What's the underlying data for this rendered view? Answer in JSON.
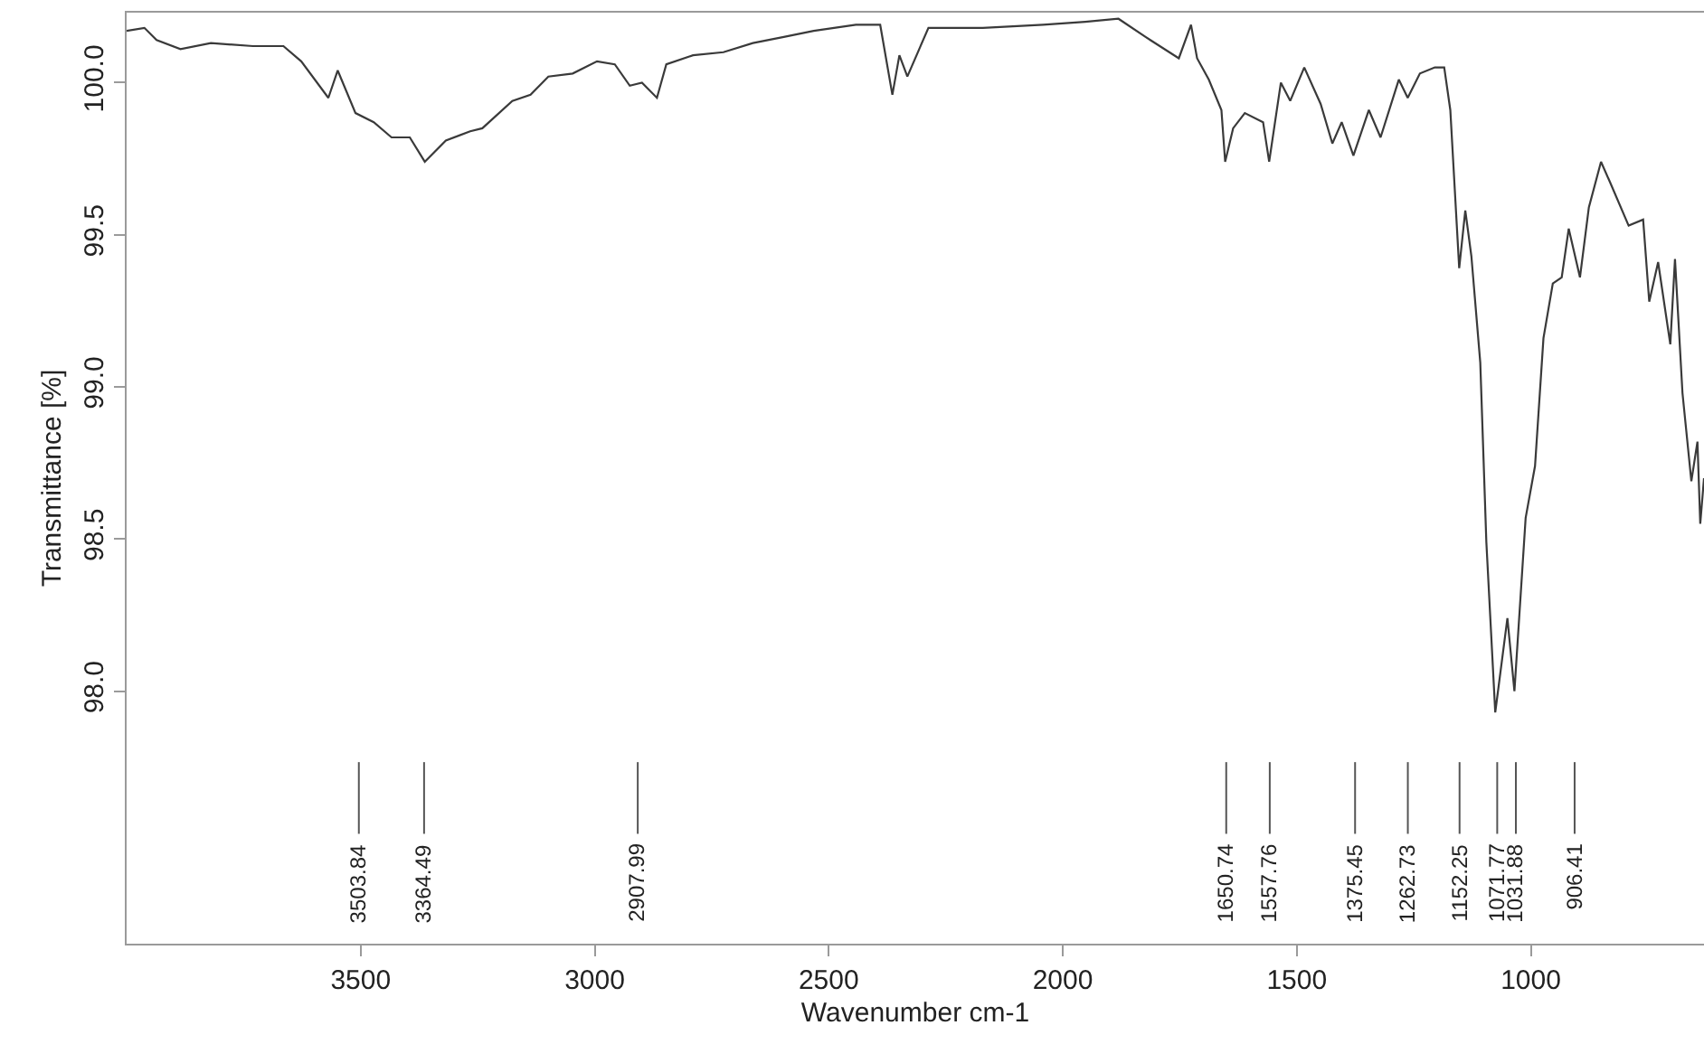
{
  "chart_data": {
    "type": "line",
    "xlabel": "Wavenumber cm-1",
    "ylabel": "Transmittance [%]",
    "xlim": [
      4000,
      630
    ],
    "xticks": [
      3500,
      3000,
      2500,
      2000,
      1500,
      1000
    ],
    "ylim": [
      97.17,
      100.23
    ],
    "yticks": [
      {
        "value": 98.0,
        "label": "98.0"
      },
      {
        "value": 98.5,
        "label": "98.5"
      },
      {
        "value": 99.0,
        "label": "99.0"
      },
      {
        "value": 99.5,
        "label": "99.5"
      },
      {
        "value": 100.0,
        "label": "100.0"
      }
    ],
    "legend": false,
    "marker": "none",
    "line_style": "solid",
    "x": [
      4000,
      3962,
      3936,
      3885,
      3820,
      3730,
      3665,
      3627,
      3569,
      3549,
      3511,
      3472,
      3434,
      3395,
      3363,
      3318,
      3266,
      3240,
      3176,
      3137,
      3099,
      3047,
      2995,
      2957,
      2925,
      2899,
      2867,
      2847,
      2790,
      2725,
      2662,
      2596,
      2532,
      2442,
      2390,
      2364,
      2349,
      2332,
      2287,
      2171,
      2042,
      1952,
      1881,
      1823,
      1752,
      1726,
      1713,
      1688,
      1661,
      1653,
      1636,
      1611,
      1572,
      1559,
      1534,
      1514,
      1484,
      1449,
      1424,
      1404,
      1379,
      1346,
      1321,
      1282,
      1263,
      1237,
      1205,
      1185,
      1172,
      1153,
      1140,
      1127,
      1108,
      1095,
      1076,
      1050,
      1035,
      1011,
      991,
      973,
      953,
      934,
      919,
      895,
      876,
      850,
      830,
      791,
      760,
      747,
      728,
      702,
      692,
      676,
      657,
      644,
      638,
      630
    ],
    "series": [
      {
        "color": "#3a3a3a",
        "values": [
          100.17,
          100.18,
          100.14,
          100.11,
          100.13,
          100.12,
          100.12,
          100.07,
          99.95,
          100.04,
          99.9,
          99.87,
          99.82,
          99.82,
          99.74,
          99.81,
          99.84,
          99.85,
          99.94,
          99.96,
          100.02,
          100.03,
          100.07,
          100.06,
          99.99,
          100.0,
          99.95,
          100.06,
          100.09,
          100.1,
          100.13,
          100.15,
          100.17,
          100.19,
          100.19,
          99.96,
          100.09,
          100.02,
          100.18,
          100.18,
          100.19,
          100.2,
          100.21,
          100.15,
          100.08,
          100.19,
          100.08,
          100.01,
          99.91,
          99.74,
          99.85,
          99.9,
          99.87,
          99.74,
          100.0,
          99.94,
          100.05,
          99.93,
          99.8,
          99.87,
          99.76,
          99.91,
          99.82,
          100.01,
          99.95,
          100.03,
          100.05,
          100.05,
          99.91,
          99.39,
          99.58,
          99.43,
          99.08,
          98.49,
          97.93,
          98.24,
          98.0,
          98.57,
          98.74,
          99.16,
          99.34,
          99.36,
          99.52,
          99.36,
          99.59,
          99.74,
          99.67,
          99.53,
          99.55,
          99.28,
          99.41,
          99.14,
          99.42,
          98.98,
          98.69,
          98.82,
          98.55,
          98.7
        ]
      }
    ],
    "ref_lines": [
      {
        "axis": "x",
        "value": 3503.84,
        "label": "3503.84",
        "color": "#555555"
      },
      {
        "axis": "x",
        "value": 3364.49,
        "label": "3364.49",
        "color": "#555555"
      },
      {
        "axis": "x",
        "value": 2907.99,
        "label": "2907.99",
        "color": "#555555"
      },
      {
        "axis": "x",
        "value": 1650.74,
        "label": "1650.74",
        "color": "#555555"
      },
      {
        "axis": "x",
        "value": 1557.76,
        "label": "1557.76",
        "color": "#555555"
      },
      {
        "axis": "x",
        "value": 1375.45,
        "label": "1375.45",
        "color": "#555555"
      },
      {
        "axis": "x",
        "value": 1262.73,
        "label": "1262.73",
        "color": "#555555"
      },
      {
        "axis": "x",
        "value": 1152.25,
        "label": "1152.25",
        "color": "#555555"
      },
      {
        "axis": "x",
        "value": 1071.77,
        "label": "1071.77",
        "color": "#555555"
      },
      {
        "axis": "x",
        "value": 1031.88,
        "label": "1031.88",
        "color": "#555555"
      },
      {
        "axis": "x",
        "value": 906.41,
        "label": "906.41",
        "color": "#555555"
      }
    ]
  }
}
